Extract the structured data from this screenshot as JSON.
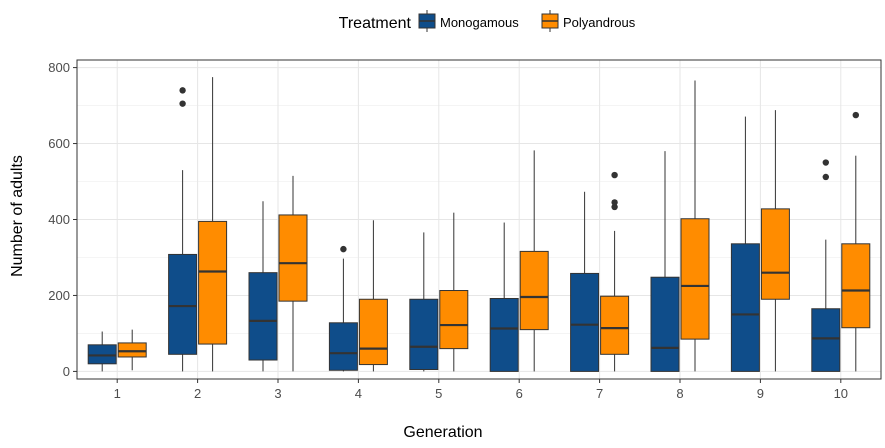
{
  "chart_data": {
    "type": "box",
    "legend": {
      "title": "Treatment",
      "position": "top"
    },
    "xlabel": "Generation",
    "ylabel": "Number of adults",
    "ylim": [
      -20,
      820
    ],
    "yticks": [
      0,
      200,
      400,
      600,
      800
    ],
    "categories": [
      "1",
      "2",
      "3",
      "4",
      "5",
      "6",
      "7",
      "8",
      "9",
      "10"
    ],
    "grid": true,
    "series": [
      {
        "name": "Monogamous",
        "color": "#0f4d8a",
        "boxes": [
          {
            "min": 0,
            "q1": 20,
            "median": 42,
            "q3": 70,
            "max": 105,
            "outliers": []
          },
          {
            "min": 0,
            "q1": 45,
            "median": 172,
            "q3": 308,
            "max": 530,
            "outliers": [
              705,
              740
            ]
          },
          {
            "min": 0,
            "q1": 30,
            "median": 133,
            "q3": 260,
            "max": 448,
            "outliers": []
          },
          {
            "min": 0,
            "q1": 3,
            "median": 48,
            "q3": 128,
            "max": 297,
            "outliers": [
              322
            ]
          },
          {
            "min": 0,
            "q1": 5,
            "median": 65,
            "q3": 190,
            "max": 366,
            "outliers": []
          },
          {
            "min": 0,
            "q1": 0,
            "median": 113,
            "q3": 192,
            "max": 392,
            "outliers": []
          },
          {
            "min": 0,
            "q1": 0,
            "median": 123,
            "q3": 258,
            "max": 473,
            "outliers": []
          },
          {
            "min": 0,
            "q1": 0,
            "median": 62,
            "q3": 248,
            "max": 580,
            "outliers": []
          },
          {
            "min": 0,
            "q1": 0,
            "median": 150,
            "q3": 336,
            "max": 671,
            "outliers": []
          },
          {
            "min": 0,
            "q1": 0,
            "median": 87,
            "q3": 165,
            "max": 347,
            "outliers": [
              512,
              550
            ]
          }
        ]
      },
      {
        "name": "Polyandrous",
        "color": "#ff8c00",
        "boxes": [
          {
            "min": 3,
            "q1": 38,
            "median": 53,
            "q3": 75,
            "max": 110,
            "outliers": []
          },
          {
            "min": 0,
            "q1": 72,
            "median": 263,
            "q3": 395,
            "max": 775,
            "outliers": []
          },
          {
            "min": 0,
            "q1": 185,
            "median": 285,
            "q3": 412,
            "max": 515,
            "outliers": []
          },
          {
            "min": 0,
            "q1": 18,
            "median": 60,
            "q3": 190,
            "max": 398,
            "outliers": []
          },
          {
            "min": 0,
            "q1": 60,
            "median": 122,
            "q3": 213,
            "max": 418,
            "outliers": []
          },
          {
            "min": 0,
            "q1": 110,
            "median": 196,
            "q3": 316,
            "max": 582,
            "outliers": []
          },
          {
            "min": 0,
            "q1": 45,
            "median": 114,
            "q3": 198,
            "max": 370,
            "outliers": [
              433,
              445,
              517
            ]
          },
          {
            "min": 0,
            "q1": 85,
            "median": 225,
            "q3": 402,
            "max": 766,
            "outliers": []
          },
          {
            "min": 0,
            "q1": 190,
            "median": 260,
            "q3": 428,
            "max": 688,
            "outliers": []
          },
          {
            "min": 0,
            "q1": 115,
            "median": 213,
            "q3": 336,
            "max": 568,
            "outliers": [
              675
            ]
          }
        ]
      }
    ]
  }
}
